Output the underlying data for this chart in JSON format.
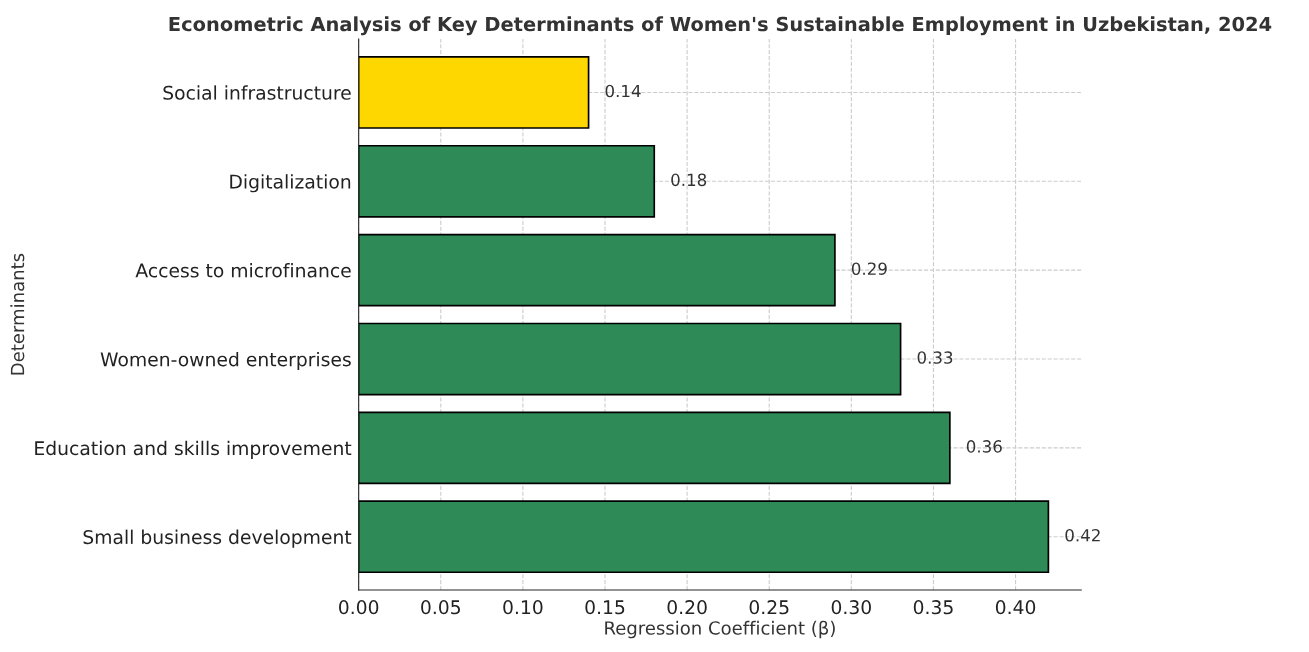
{
  "chart_data": {
    "type": "bar",
    "orientation": "horizontal",
    "title": "Econometric Analysis of Key Determinants of Women's Sustainable Employment in Uzbekistan, 2024",
    "xlabel": "Regression Coefficient (β)",
    "ylabel": "Determinants",
    "categories": [
      "Social infrastructure",
      "Digitalization",
      "Access to microfinance",
      "Women-owned enterprises",
      "Education and skills improvement",
      "Small business development"
    ],
    "values": [
      0.14,
      0.18,
      0.29,
      0.33,
      0.36,
      0.42
    ],
    "colors": [
      "#ffd700",
      "#2e8b57",
      "#2e8b57",
      "#2e8b57",
      "#2e8b57",
      "#2e8b57"
    ],
    "xlim": [
      0,
      0.44
    ],
    "xticks": [
      {
        "value": 0,
        "label": "0.00"
      },
      {
        "value": 0.05,
        "label": "0.05"
      },
      {
        "value": 0.1,
        "label": "0.10"
      },
      {
        "value": 0.15,
        "label": "0.15"
      },
      {
        "value": 0.2,
        "label": "0.20"
      },
      {
        "value": 0.25,
        "label": "0.25"
      },
      {
        "value": 0.3,
        "label": "0.30"
      },
      {
        "value": 0.35,
        "label": "0.35"
      },
      {
        "value": 0.4,
        "label": "0.40"
      }
    ],
    "data_labels": true,
    "grid": true,
    "legend": false
  }
}
